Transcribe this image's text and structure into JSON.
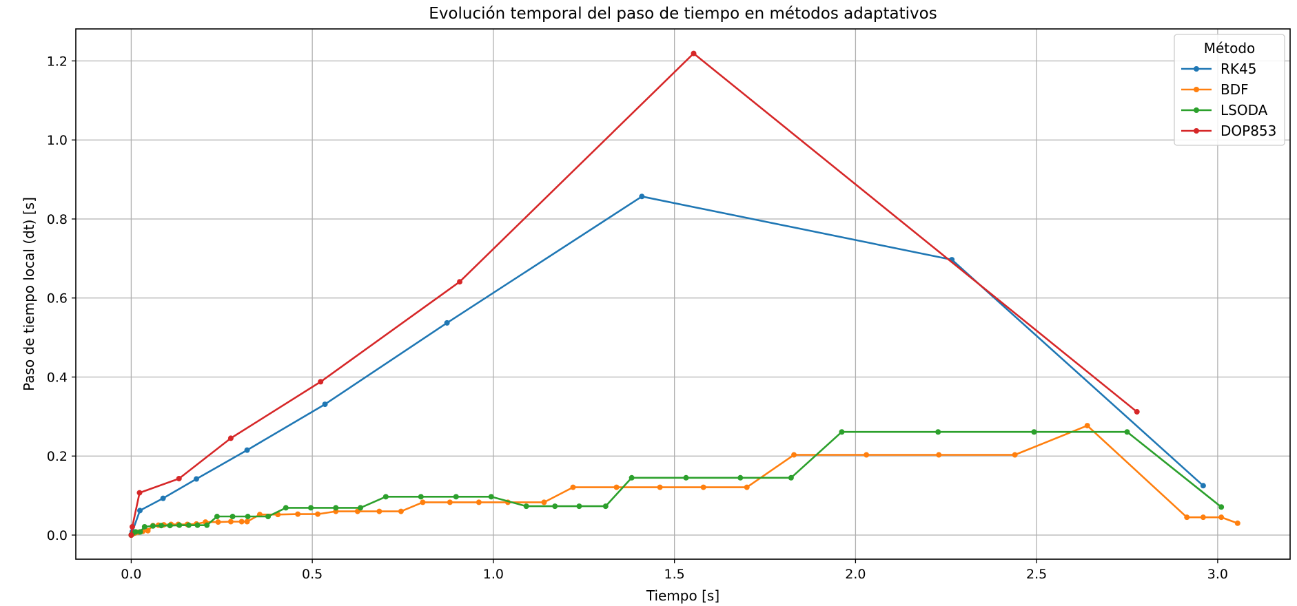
{
  "chart_data": {
    "type": "line",
    "title": "Evolución temporal del paso de tiempo en métodos adaptativos",
    "xlabel": "Tiempo [s]",
    "ylabel": "Paso de tiempo local (dt) [s]",
    "xlim": [
      -0.153,
      3.2
    ],
    "ylim": [
      -0.061,
      1.281
    ],
    "xticks": [
      0.0,
      0.5,
      1.0,
      1.5,
      2.0,
      2.5,
      3.0
    ],
    "xtick_labels": [
      "0.0",
      "0.5",
      "1.0",
      "1.5",
      "2.0",
      "2.5",
      "3.0"
    ],
    "yticks": [
      0.0,
      0.2,
      0.4,
      0.6,
      0.8,
      1.0,
      1.2
    ],
    "ytick_labels": [
      "0.0",
      "0.2",
      "0.4",
      "0.6",
      "0.8",
      "1.0",
      "1.2"
    ],
    "grid": true,
    "legend": {
      "title": "Método",
      "position": "top-right"
    },
    "series": [
      {
        "name": "RK45",
        "color": "#1f77b4",
        "x": [
          0.0,
          0.001,
          0.003,
          0.024,
          0.088,
          0.18,
          0.32,
          0.535,
          0.872,
          1.41,
          2.266,
          2.96
        ],
        "y": [
          0.0,
          0.0013,
          0.0085,
          0.062,
          0.093,
          0.142,
          0.215,
          0.331,
          0.537,
          0.857,
          0.697,
          0.125
        ]
      },
      {
        "name": "BDF",
        "color": "#ff7f0e",
        "x": [
          0.0,
          0.002,
          0.005,
          0.01,
          0.02,
          0.032,
          0.046,
          0.06,
          0.075,
          0.09,
          0.11,
          0.13,
          0.155,
          0.18,
          0.205,
          0.24,
          0.275,
          0.305,
          0.32,
          0.355,
          0.405,
          0.46,
          0.515,
          0.565,
          0.625,
          0.685,
          0.745,
          0.805,
          0.88,
          0.96,
          1.04,
          1.14,
          1.22,
          1.34,
          1.46,
          1.58,
          1.7,
          1.83,
          2.03,
          2.23,
          2.44,
          2.64,
          2.915,
          2.96,
          3.01,
          3.055
        ],
        "y": [
          0.0,
          0.0017,
          0.0035,
          0.005,
          0.0072,
          0.0095,
          0.011,
          0.024,
          0.025,
          0.026,
          0.027,
          0.027,
          0.027,
          0.028,
          0.033,
          0.033,
          0.034,
          0.034,
          0.034,
          0.052,
          0.052,
          0.053,
          0.053,
          0.06,
          0.06,
          0.06,
          0.06,
          0.083,
          0.083,
          0.083,
          0.083,
          0.083,
          0.121,
          0.121,
          0.121,
          0.121,
          0.121,
          0.203,
          0.203,
          0.203,
          0.203,
          0.277,
          0.045,
          0.045,
          0.045,
          0.03
        ]
      },
      {
        "name": "LSODA",
        "color": "#2ca02c",
        "x": [
          0.0,
          0.004,
          0.012,
          0.025,
          0.037,
          0.06,
          0.083,
          0.107,
          0.133,
          0.159,
          0.183,
          0.209,
          0.237,
          0.28,
          0.322,
          0.378,
          0.427,
          0.496,
          0.565,
          0.633,
          0.703,
          0.8,
          0.897,
          0.994,
          1.091,
          1.17,
          1.237,
          1.31,
          1.382,
          1.532,
          1.682,
          1.822,
          1.962,
          2.228,
          2.493,
          2.75,
          3.01
        ],
        "y": [
          0.0,
          0.004,
          0.008,
          0.008,
          0.021,
          0.023,
          0.024,
          0.024,
          0.025,
          0.025,
          0.025,
          0.025,
          0.047,
          0.047,
          0.047,
          0.047,
          0.069,
          0.069,
          0.069,
          0.069,
          0.097,
          0.097,
          0.097,
          0.097,
          0.073,
          0.073,
          0.073,
          0.073,
          0.145,
          0.145,
          0.145,
          0.145,
          0.261,
          0.261,
          0.261,
          0.261,
          0.071
        ]
      },
      {
        "name": "DOP853",
        "color": "#d62728",
        "x": [
          0.0,
          0.003,
          0.023,
          0.132,
          0.275,
          0.523,
          0.907,
          1.553,
          2.777
        ],
        "y": [
          0.0,
          0.021,
          0.107,
          0.143,
          0.245,
          0.388,
          0.641,
          1.219,
          0.312
        ]
      }
    ]
  }
}
